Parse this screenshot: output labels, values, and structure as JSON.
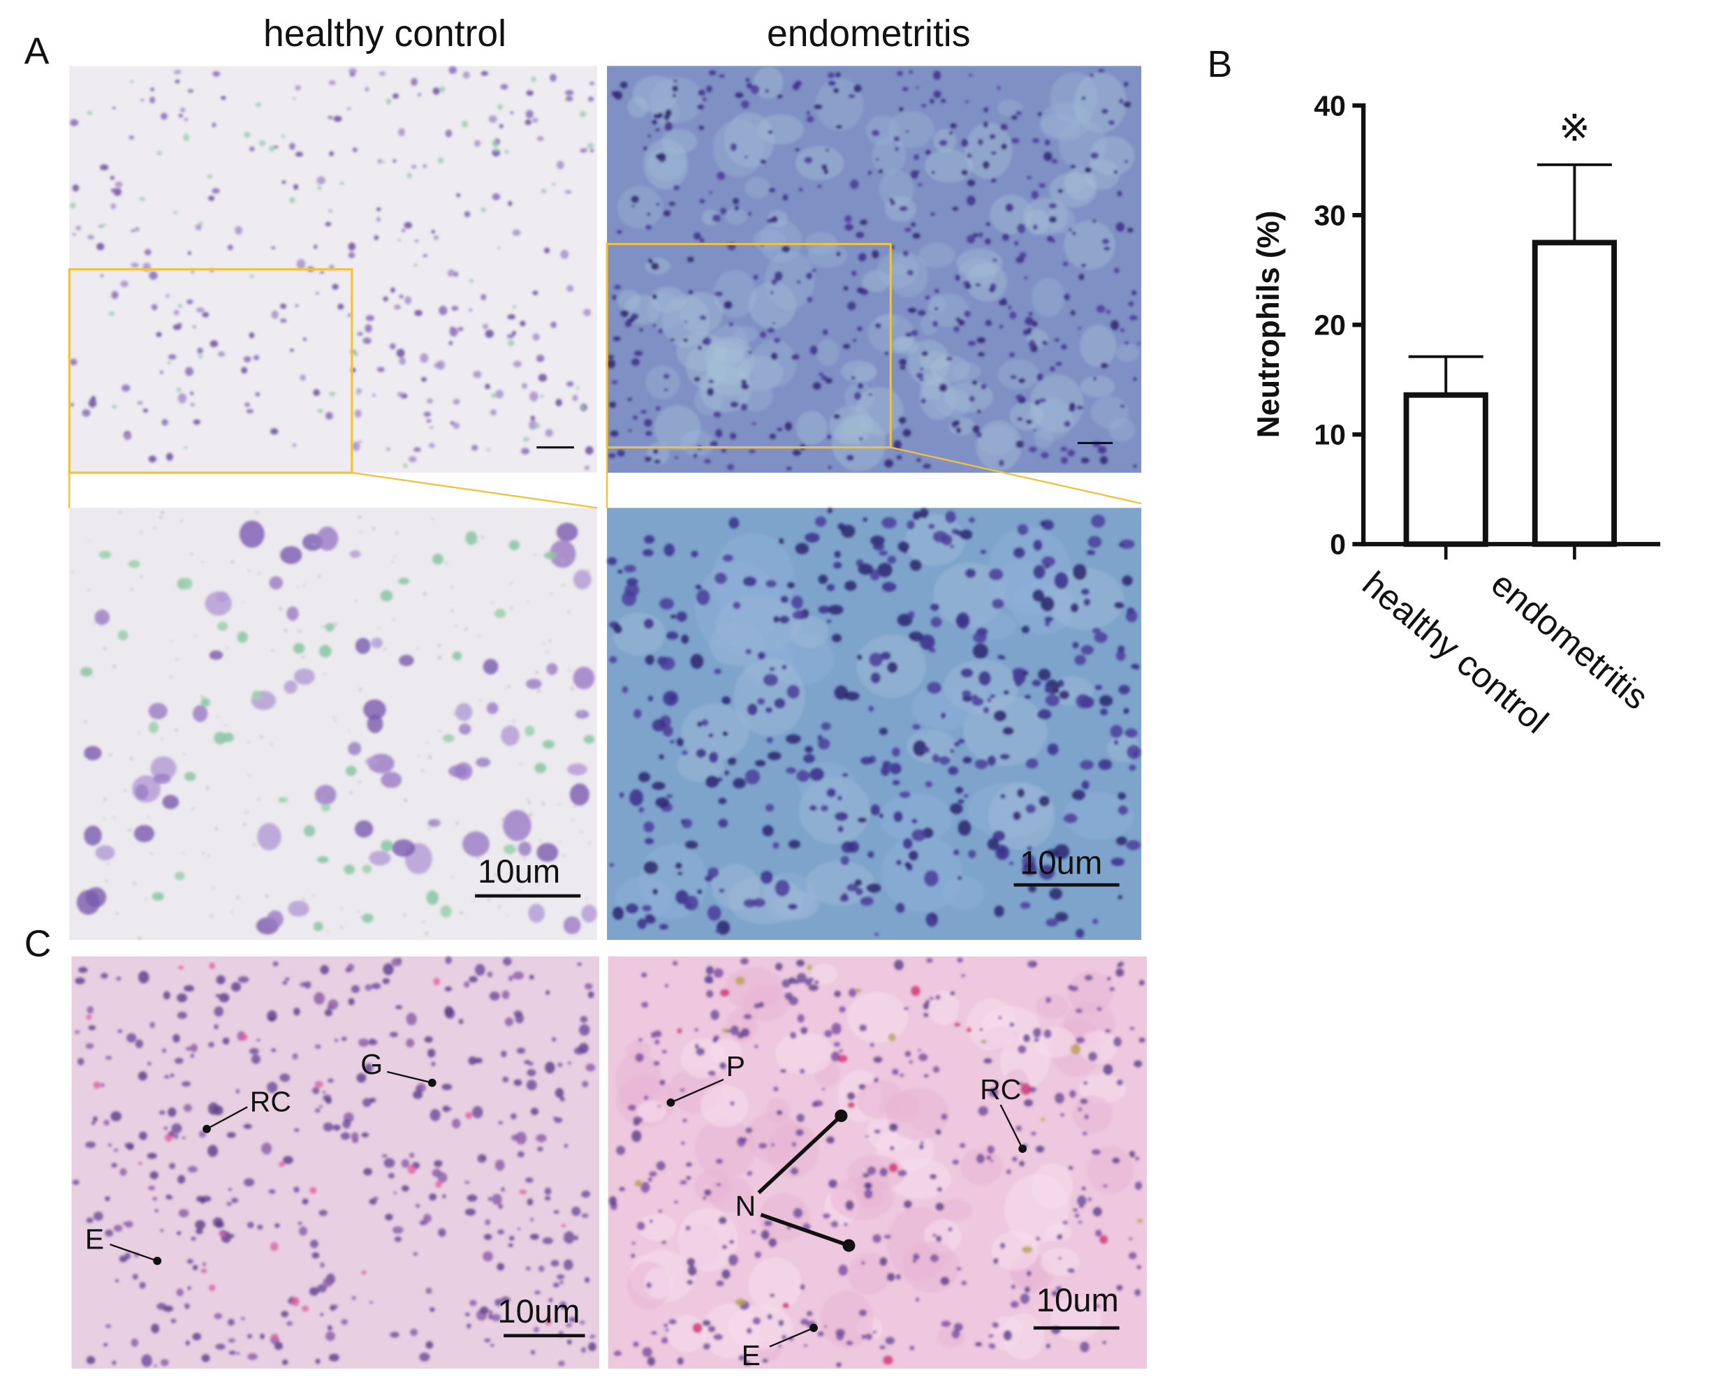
{
  "panels": {
    "A": "A",
    "B": "B",
    "C": "C"
  },
  "headers": [
    "healthy control",
    "endometritis"
  ],
  "scale_bars": [
    "10um",
    "10um",
    "10um",
    "10um"
  ],
  "histology_left_labels": [
    "RC",
    "G",
    "E"
  ],
  "histology_right_labels": [
    "P",
    "RC",
    "N",
    "E"
  ],
  "chart_data": {
    "type": "bar",
    "y_label": "Neutrophils (%)",
    "categories": [
      "healthy control",
      "endometritis"
    ],
    "values": [
      13.6,
      27.5
    ],
    "errors": [
      3.5,
      7.1
    ],
    "significance_marker": "※",
    "ylim": [
      0,
      40
    ],
    "yticks": [
      0,
      10,
      20,
      30,
      40
    ],
    "grid": false,
    "color": "#ffffff"
  }
}
